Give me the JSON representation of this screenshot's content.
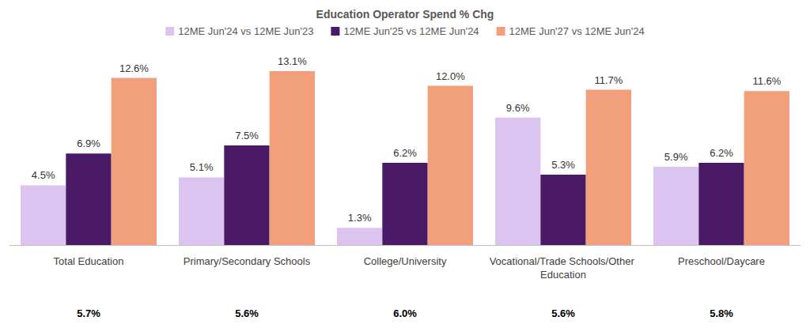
{
  "chart_data": {
    "type": "bar",
    "title": "Education Operator Spend % Chg",
    "categories": [
      "Total Education",
      "Primary/Secondary Schools",
      "College/University",
      "Vocational/Trade Schools/Other Education",
      "Preschool/Daycare"
    ],
    "series": [
      {
        "name": "12ME Jun'24 vs 12ME Jun'23",
        "color": "#dcc4f0",
        "values": [
          4.5,
          5.1,
          1.3,
          9.6,
          5.9
        ],
        "value_labels": [
          "4.5%",
          "5.1%",
          "1.3%",
          "9.6%",
          "5.9%"
        ]
      },
      {
        "name": "12ME Jun'25 vs 12ME Jun'24",
        "color": "#4a1a66",
        "values": [
          6.9,
          7.5,
          6.2,
          5.3,
          6.2
        ],
        "value_labels": [
          "6.9%",
          "7.5%",
          "6.2%",
          "5.3%",
          "6.2%"
        ]
      },
      {
        "name": "12ME Jun'27 vs 12ME Jun'24",
        "color": "#f2a07c",
        "values": [
          12.6,
          13.1,
          12.0,
          11.7,
          11.6
        ],
        "value_labels": [
          "12.6%",
          "13.1%",
          "12.0%",
          "11.7%",
          "11.6%"
        ]
      }
    ],
    "footer_values": [
      5.7,
      5.6,
      6.0,
      5.6,
      5.8
    ],
    "footer_labels": [
      "5.7%",
      "5.6%",
      "6.0%",
      "5.6%",
      "5.8%"
    ],
    "ylim": [
      0,
      14
    ],
    "grid": false,
    "legend": "top",
    "data_labels": true,
    "tick_labels": "x"
  }
}
